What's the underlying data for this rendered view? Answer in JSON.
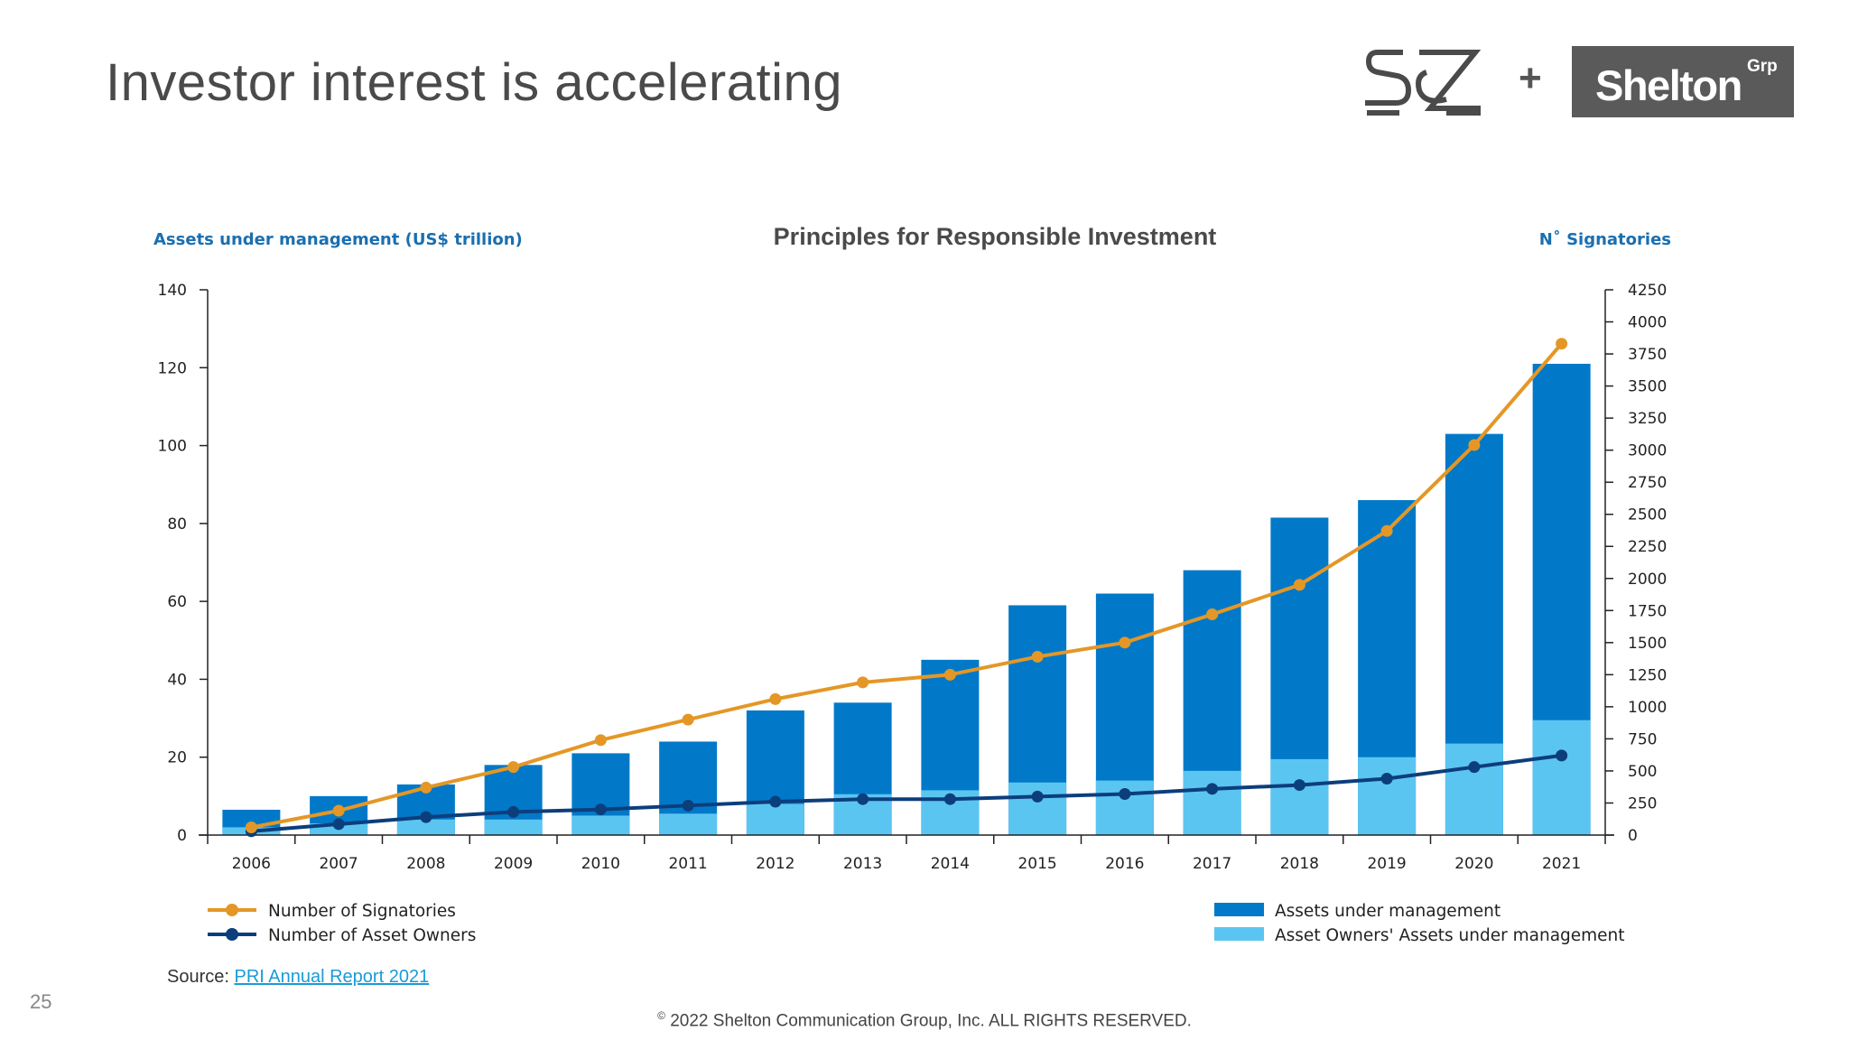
{
  "slide": {
    "title": "Investor interest is accelerating",
    "page_number": "25",
    "logos": {
      "sz": "S&Z",
      "plus": "+",
      "shelton": "Shelton",
      "shelton_sup": "Grp"
    },
    "source_label": "Source: ",
    "source_link": "PRI Annual Report 2021",
    "copyright_symbol": "©",
    "copyright": "2022 Shelton Communication Group, Inc.  ALL RIGHTS RESERVED."
  },
  "colors": {
    "aum": "#0279c8",
    "owners_aum": "#5bc5f2",
    "signatories": "#e49726",
    "asset_owners": "#0c3e7c"
  },
  "chart_data": {
    "type": "bar",
    "title": "Principles for Responsible Investment",
    "ylabel": "Assets under management (US$ trillion)",
    "y2label": "N˚ Signatories",
    "ylim": [
      0,
      140
    ],
    "y2lim": [
      0,
      4250
    ],
    "yticks": [
      0,
      20,
      40,
      60,
      80,
      100,
      120,
      140
    ],
    "y2ticks": [
      0,
      250,
      500,
      750,
      1000,
      1250,
      1500,
      1750,
      2000,
      2250,
      2500,
      2750,
      3000,
      3250,
      3500,
      3750,
      4000,
      4250
    ],
    "categories": [
      "2006",
      "2007",
      "2008",
      "2009",
      "2010",
      "2011",
      "2012",
      "2013",
      "2014",
      "2015",
      "2016",
      "2017",
      "2018",
      "2019",
      "2020",
      "2021"
    ],
    "grid": false,
    "series": [
      {
        "name": "Assets under management",
        "kind": "bar",
        "axis": "left",
        "values": [
          6.5,
          10,
          13,
          18,
          21,
          24,
          32,
          34,
          45,
          59,
          62,
          68,
          81.5,
          86,
          103,
          121
        ]
      },
      {
        "name": "Asset Owners' Assets under management",
        "kind": "bar",
        "axis": "left",
        "values": [
          2,
          3,
          4,
          4,
          5,
          5.5,
          8,
          10.5,
          11.5,
          13.5,
          14,
          16.5,
          19.5,
          20,
          23.5,
          29.5
        ]
      },
      {
        "name": "Number of Signatories",
        "kind": "line",
        "axis": "right",
        "values": [
          60,
          190,
          370,
          530,
          740,
          900,
          1060,
          1190,
          1250,
          1390,
          1500,
          1720,
          1950,
          2370,
          3040,
          3830
        ]
      },
      {
        "name": "Number of Asset Owners",
        "kind": "line",
        "axis": "right",
        "values": [
          30,
          85,
          140,
          180,
          200,
          230,
          260,
          280,
          280,
          300,
          320,
          360,
          390,
          440,
          530,
          620
        ]
      }
    ],
    "legend": [
      {
        "label": "Number of Signatories",
        "kind": "line",
        "series": "signatories"
      },
      {
        "label": "Number of Asset Owners",
        "kind": "line",
        "series": "asset_owners"
      },
      {
        "label": "Assets under management",
        "kind": "bar",
        "series": "aum"
      },
      {
        "label": "Asset Owners' Assets under management",
        "kind": "bar",
        "series": "owners_aum"
      }
    ]
  }
}
